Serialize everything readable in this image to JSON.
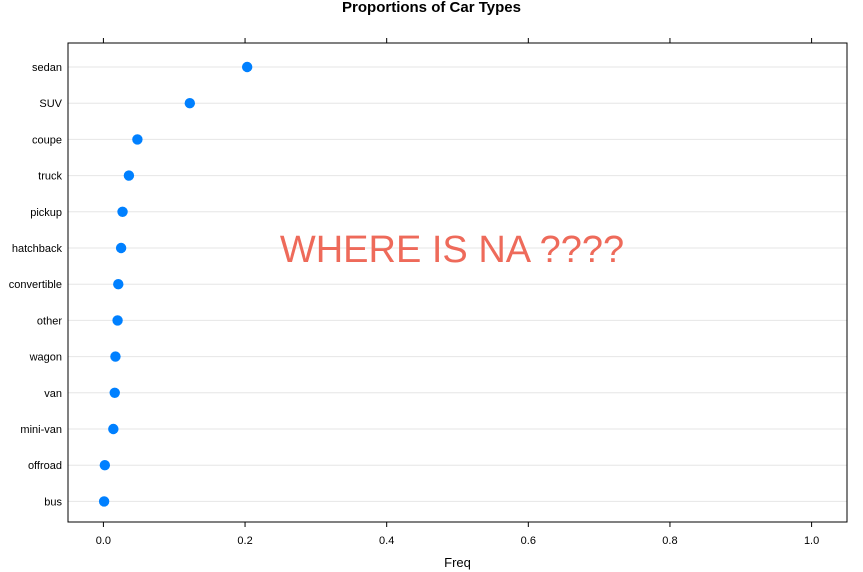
{
  "chart_data": {
    "type": "dot",
    "title": "Proportions of Car Types",
    "xlabel": "Freq",
    "ylabel": "",
    "xlim": [
      -0.05,
      1.05
    ],
    "xticks": [
      0.0,
      0.2,
      0.4,
      0.6,
      0.8,
      1.0
    ],
    "xtick_labels": [
      "0.0",
      "0.2",
      "0.4",
      "0.6",
      "0.8",
      "1.0"
    ],
    "categories": [
      "sedan",
      "SUV",
      "coupe",
      "truck",
      "pickup",
      "hatchback",
      "convertible",
      "other",
      "wagon",
      "van",
      "mini-van",
      "offroad",
      "bus"
    ],
    "values": [
      0.203,
      0.122,
      0.048,
      0.036,
      0.027,
      0.025,
      0.021,
      0.02,
      0.017,
      0.016,
      0.014,
      0.002,
      0.001
    ],
    "grid": "horizontal",
    "point_color": "#0080ff",
    "annotation": {
      "text": "WHERE IS NA ????",
      "color": "#ee6a5a"
    }
  }
}
